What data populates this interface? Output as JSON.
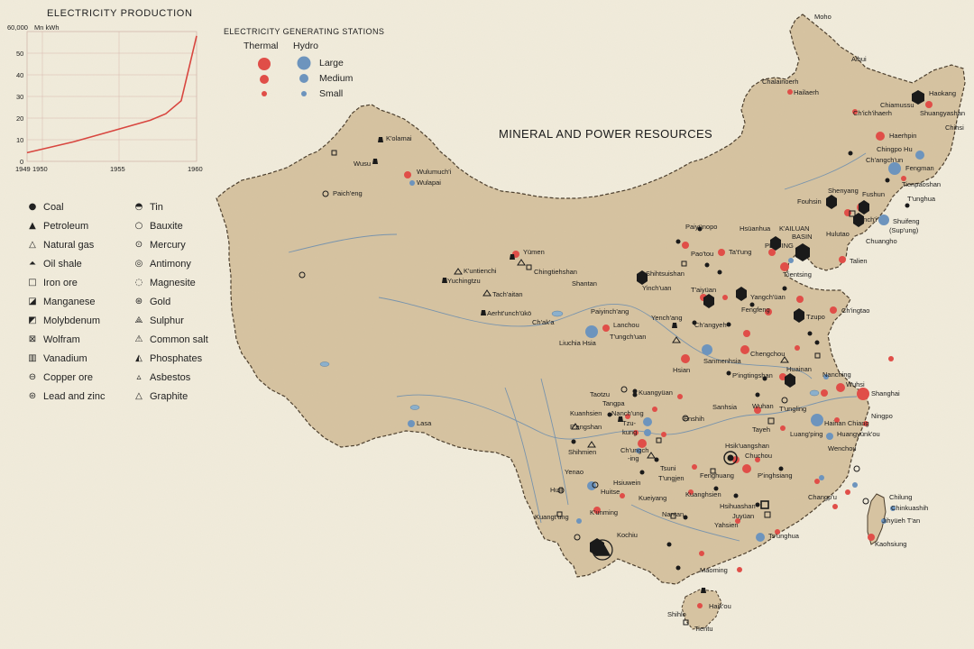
{
  "chart": {
    "title": "ELECTRICITY PRODUCTION",
    "unit_value": "60,000",
    "unit_label": "Mn kWh",
    "y_ticks": [
      "50",
      "40",
      "30",
      "20",
      "10",
      "0"
    ],
    "x_ticks": [
      "1949",
      "1950",
      "1955",
      "1960"
    ]
  },
  "chart_data": {
    "type": "line",
    "title": "ELECTRICITY PRODUCTION",
    "ylabel": "Mn kWh",
    "xlabel": "",
    "x": [
      1949,
      1952,
      1957,
      1958,
      1959,
      1960
    ],
    "values": [
      4000,
      9000,
      19000,
      22000,
      28000,
      58000
    ],
    "xlim": [
      1949,
      1960
    ],
    "ylim": [
      0,
      60000
    ],
    "grid": true,
    "line_color": "#d8463f"
  },
  "map_title": "MINERAL AND POWER RESOURCES",
  "stations_legend": {
    "header": "ELECTRICITY GENERATING STATIONS",
    "thermal": "Thermal",
    "hydro": "Hydro",
    "large": "Large",
    "medium": "Medium",
    "small": "Small",
    "thermal_color": "#e04e48",
    "hydro_color": "#6d94bd"
  },
  "mineral_legend": {
    "left": [
      {
        "icon": "coal-icon",
        "label": "Coal"
      },
      {
        "icon": "petroleum-icon",
        "label": "Petroleum"
      },
      {
        "icon": "natural-gas-icon",
        "label": "Natural gas"
      },
      {
        "icon": "oil-shale-icon",
        "label": "Oil shale"
      },
      {
        "icon": "iron-ore-icon",
        "label": "Iron ore"
      },
      {
        "icon": "manganese-icon",
        "label": "Manganese"
      },
      {
        "icon": "molybdenum-icon",
        "label": "Molybdenum"
      },
      {
        "icon": "wolfram-icon",
        "label": "Wolfram"
      },
      {
        "icon": "vanadium-icon",
        "label": "Vanadium"
      },
      {
        "icon": "copper-ore-icon",
        "label": "Copper ore"
      },
      {
        "icon": "lead-zinc-icon",
        "label": "Lead and zinc"
      }
    ],
    "right": [
      {
        "icon": "tin-icon",
        "label": "Tin"
      },
      {
        "icon": "bauxite-icon",
        "label": "Bauxite"
      },
      {
        "icon": "mercury-icon",
        "label": "Mercury"
      },
      {
        "icon": "antimony-icon",
        "label": "Antimony"
      },
      {
        "icon": "magnesite-icon",
        "label": "Magnesite"
      },
      {
        "icon": "gold-icon",
        "label": "Gold"
      },
      {
        "icon": "sulphur-icon",
        "label": "Sulphur"
      },
      {
        "icon": "common-salt-icon",
        "label": "Common salt"
      },
      {
        "icon": "phosphates-icon",
        "label": "Phosphates"
      },
      {
        "icon": "asbestos-icon",
        "label": "Asbestos"
      },
      {
        "icon": "graphite-icon",
        "label": "Graphite"
      }
    ]
  },
  "places": {
    "moho": "Moho",
    "aihui": "Aihui",
    "chalainoerh": "Chalainoerh",
    "hailaerh": "Hailaerh",
    "hsiaoluo": "Chiamussu",
    "haokang": "Haokang",
    "shuangyashan": "Shuangyashan",
    "chichihaerh": "Ch'ich'ihaerh",
    "chihsi": "Chihsi",
    "haerhpin": "Haerhpin",
    "chingpohu": "Chingpo Hu",
    "changchun": "Ch'angch'un",
    "fengman": "Fengman",
    "fouhsin": "Fouhsin",
    "shenyang": "Shenyang",
    "fushun": "Fushun",
    "tunghua": "T'unghua",
    "tienpaoshan": "Tienpaoshan",
    "penchi": "Pench'i",
    "shuifeng": "Shuifeng",
    "supung": "(Sup'ung)",
    "huludao": "Hulutao",
    "chuangho": "Chuangho",
    "talien": "Talien",
    "kolamai": "K'olamai",
    "wusu": "Wusu",
    "wulumuchi": "Wulumuch'i",
    "wulapai": "Wulapai",
    "paicheng": "Paich'eng",
    "paiyunopo": "Paiyünopo",
    "hsuanhua": "Hsüanhua",
    "kailuan": "K'AILUAN",
    "basin": "BASIN",
    "paotou": "Pao'tou",
    "peiping": "PEIP'ING",
    "tatung": "Ta't'ung",
    "tientsin": "T'ientsing",
    "yumen": "Yümen",
    "chingtiehshan": "Chingtiehshan",
    "shantan": "Shantan",
    "kuntienchi": "K'untienchi",
    "yuchingtzu": "Yuchingtzu",
    "tachaitan": "Tach'aitan",
    "aerhtunchuko": "Aerht'unch'ükö",
    "chaka": "Ch'ak'a",
    "paiyinchang": "Paiyinch'ang",
    "shihtsuishan": "Shihtsuishan",
    "yinchuan": "Yinch'uan",
    "taiyuan": "T'aiyüan",
    "yangchuan": "Yangch'üan",
    "yenchang": "Yench'ang",
    "changyeh": "Ch'angyeh",
    "fengfeng": "Fengfeng",
    "tzupo": "Tzupo",
    "chingtao": "Ch'ingtao",
    "lanchou": "Lanchou",
    "liuchiahsia": "Liuchia Hsia",
    "tungchuan": "T'ungch'uan",
    "chengchou": "Chengchou",
    "sanmenhsia": "Sanmenhsia",
    "hsian": "Hsian",
    "huainan": "Huainan",
    "pingtingshan": "P'ingtingshan",
    "nanching": "Nanching",
    "wuhsi": "Wuhsi",
    "shanghai": "Shanghai",
    "tungling": "T'ungling",
    "ningpo": "Ningpo",
    "hainanchiang": "Hainan Chiang",
    "huangyunkou": "Huangyünk'ou",
    "wenchou": "Wenchou",
    "taotzu": "Taotzu",
    "tangpa": "Tangpa",
    "kuangyuan": "Kuangyüan",
    "kuanhsien": "Kuanhsien",
    "nanchung": "Nanch'ung",
    "pengshan": "P'engshan",
    "tzukung": "Tzu-",
    "kung": "kung",
    "chungching": "Ch'ungch",
    "ing": "-ing",
    "shihmien": "Shihmien",
    "enshih": "Enshih",
    "sanhsia": "Sanhsia",
    "wuhan": "Wuhan",
    "tayeh": "Tayeh",
    "luanping": "Luang'ping",
    "hsikuangshan": "Hsik'uangshan",
    "chuchou": "Chuchou",
    "pinghsiang": "P'inghsiang",
    "changpu": "Changp'u",
    "yenao": "Yenao",
    "huili": "Huili",
    "hsiuwein": "Hsiuwein",
    "huitse": "Huitse",
    "tsuni": "Tsuni",
    "tungjen": "T'ungjen",
    "fenghuang": "Fenghuang",
    "kuanghsien": "Kuanghsien",
    "kueiyang": "Kueiyang",
    "kunming": "K'unming",
    "kuangtung": "Kuangt'ung",
    "nantan": "Nantan",
    "hsihuashan": "Hsihuashan",
    "yuyuan": "Juyüan",
    "yahsien": "Yahsien",
    "tsunghua": "Ts'unghua",
    "kochiu": "Kochiu",
    "maoming": "Maoming",
    "haikou": "Haik'ou",
    "shihlo": "Shihlo",
    "tientu": "Tientu",
    "lasa": "Lasa",
    "chilung": "Chilung",
    "chinkuashih": "Chinkuashih",
    "jihyuehtan": "Jihyüeh T'an",
    "kaohsiung": "Kaohsiung"
  }
}
